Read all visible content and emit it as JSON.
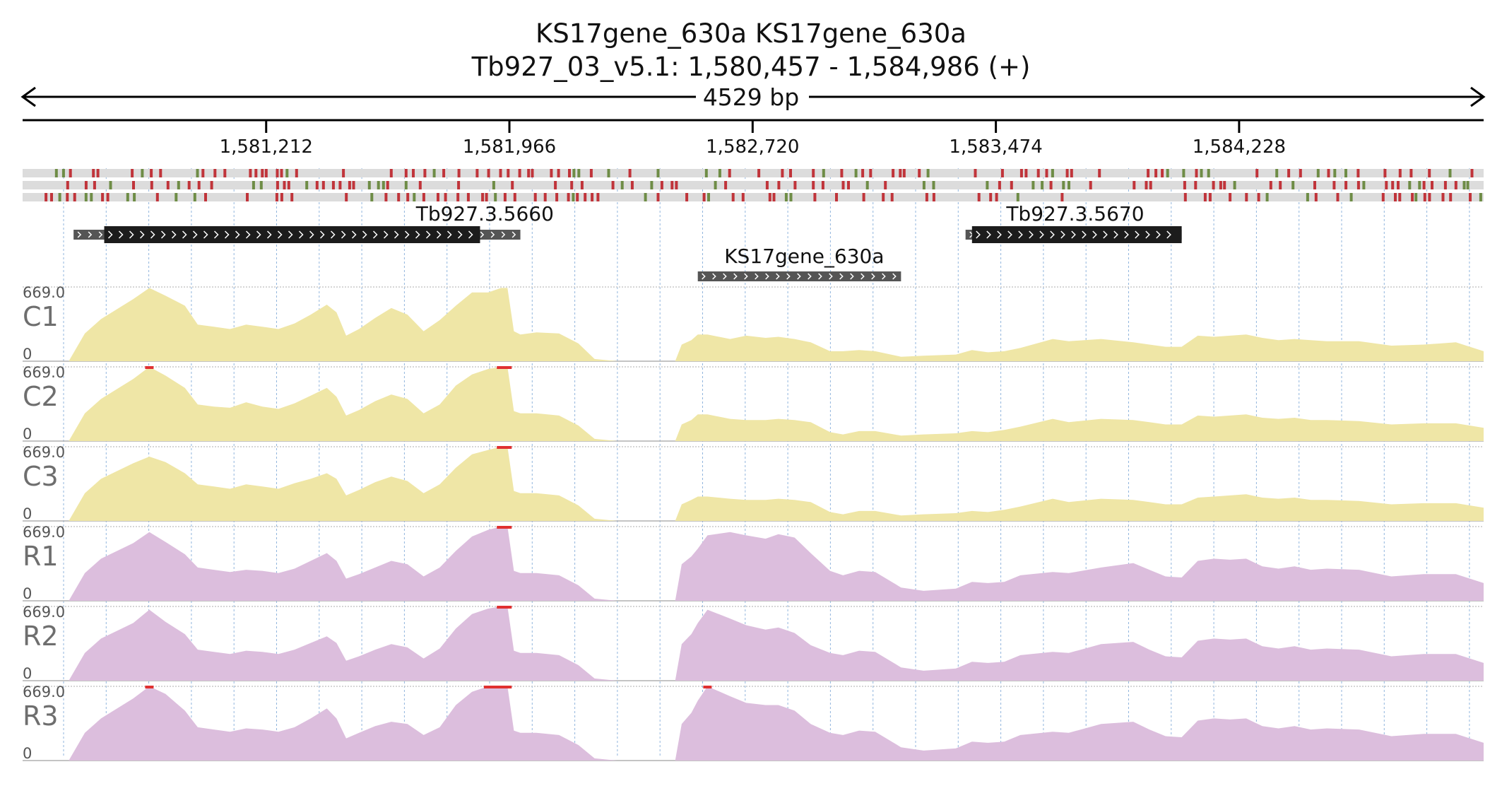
{
  "title": {
    "line1": "KS17gene_630a  KS17gene_630a",
    "line2": "Tb927_03_v5.1: 1,580,457 - 1,584,986 (+)"
  },
  "span_label": "4529 bp",
  "colors": {
    "coverage_C": "#efe6a6",
    "coverage_R": "#dcbedd",
    "variant_red": "#c0343a",
    "variant_green": "#6e8c46",
    "gene": "#1c1c1c",
    "gene_utr": "#555555",
    "clip": "#e03030",
    "grid": "#7ea9d8"
  },
  "chart_data": {
    "type": "area",
    "title": "KS17gene_630a  KS17gene_630a",
    "subtitle": "Tb927_03_v5.1: 1,580,457 - 1,584,986 (+)",
    "xlabel": "",
    "ylabel": "",
    "xlim": [
      1580457,
      1584986
    ],
    "x_ticks": [
      1581212,
      1581966,
      1582720,
      1583474,
      1584228
    ],
    "x_tick_labels": [
      "1,581,212",
      "1,581,966",
      "1,582,720",
      "1,583,474",
      "1,584,228"
    ],
    "ylim": [
      0,
      669
    ],
    "genes": [
      {
        "name": "Tb927.3.5660",
        "start": 1580615,
        "end": 1582000,
        "cds_start": 1580710,
        "cds_end": 1581875,
        "strand": "+"
      },
      {
        "name": "Tb927.3.5670",
        "start": 1583380,
        "end": 1584050,
        "cds_start": 1583400,
        "cds_end": 1584050,
        "strand": "+"
      },
      {
        "name": "KS17gene_630a",
        "start": 1582550,
        "end": 1583180,
        "cds_start": null,
        "cds_end": null,
        "strand": "+"
      }
    ],
    "x": [
      1580457,
      1580600,
      1580650,
      1580700,
      1580800,
      1580850,
      1580900,
      1580960,
      1581000,
      1581050,
      1581100,
      1581150,
      1581200,
      1581250,
      1581300,
      1581350,
      1581400,
      1581430,
      1581460,
      1581500,
      1581550,
      1581600,
      1581650,
      1581700,
      1581750,
      1581800,
      1581850,
      1581900,
      1581940,
      1581960,
      1581980,
      1582000,
      1582050,
      1582120,
      1582180,
      1582230,
      1582300,
      1582400,
      1582480,
      1582500,
      1582530,
      1582550,
      1582580,
      1582650,
      1582700,
      1582760,
      1582800,
      1582850,
      1582900,
      1582960,
      1583000,
      1583050,
      1583100,
      1583180,
      1583250,
      1583350,
      1583400,
      1583450,
      1583500,
      1583550,
      1583650,
      1583700,
      1583800,
      1583900,
      1583950,
      1584000,
      1584050,
      1584100,
      1584150,
      1584200,
      1584250,
      1584300,
      1584350,
      1584400,
      1584450,
      1584500,
      1584600,
      1584700,
      1584800,
      1584900,
      1584986
    ],
    "series": [
      {
        "name": "C1",
        "max_label": "669.0",
        "min_label": "0",
        "values": [
          0,
          0,
          250,
          380,
          560,
          660,
          590,
          500,
          330,
          310,
          290,
          330,
          310,
          290,
          340,
          420,
          510,
          440,
          230,
          290,
          390,
          480,
          420,
          270,
          370,
          500,
          620,
          620,
          660,
          660,
          270,
          240,
          260,
          250,
          160,
          20,
          0,
          0,
          0,
          150,
          190,
          240,
          240,
          200,
          230,
          210,
          220,
          200,
          170,
          90,
          90,
          100,
          90,
          40,
          50,
          60,
          100,
          80,
          90,
          120,
          200,
          180,
          200,
          170,
          150,
          130,
          130,
          230,
          220,
          230,
          240,
          210,
          190,
          200,
          190,
          180,
          180,
          140,
          150,
          170,
          90
        ]
      },
      {
        "name": "C2",
        "max_label": "669.0",
        "min_label": "0",
        "values": [
          0,
          0,
          250,
          380,
          560,
          669,
          590,
          480,
          330,
          310,
          300,
          350,
          310,
          290,
          340,
          410,
          480,
          400,
          230,
          280,
          360,
          420,
          380,
          250,
          330,
          500,
          600,
          650,
          669,
          669,
          270,
          250,
          250,
          230,
          140,
          20,
          0,
          0,
          0,
          150,
          190,
          240,
          240,
          200,
          190,
          190,
          200,
          190,
          170,
          80,
          60,
          90,
          90,
          50,
          60,
          70,
          90,
          80,
          100,
          130,
          200,
          170,
          200,
          190,
          170,
          150,
          150,
          230,
          220,
          230,
          240,
          210,
          200,
          210,
          190,
          190,
          180,
          150,
          160,
          160,
          120
        ]
      },
      {
        "name": "C3",
        "max_label": "669.0",
        "min_label": "0",
        "values": [
          0,
          0,
          250,
          380,
          520,
          580,
          530,
          430,
          330,
          310,
          290,
          330,
          310,
          290,
          340,
          380,
          430,
          380,
          230,
          280,
          350,
          400,
          360,
          250,
          330,
          480,
          600,
          640,
          669,
          669,
          270,
          250,
          250,
          230,
          140,
          20,
          0,
          0,
          0,
          150,
          190,
          220,
          220,
          200,
          190,
          190,
          200,
          190,
          170,
          80,
          60,
          90,
          90,
          50,
          60,
          70,
          90,
          80,
          100,
          130,
          200,
          170,
          200,
          190,
          170,
          150,
          150,
          210,
          220,
          230,
          240,
          210,
          200,
          210,
          190,
          190,
          180,
          150,
          160,
          160,
          120
        ]
      },
      {
        "name": "R1",
        "max_label": "669.0",
        "min_label": "0",
        "values": [
          0,
          0,
          250,
          380,
          520,
          620,
          530,
          420,
          300,
          280,
          260,
          280,
          270,
          250,
          290,
          360,
          430,
          360,
          200,
          240,
          300,
          360,
          330,
          220,
          300,
          450,
          580,
          640,
          669,
          669,
          270,
          250,
          250,
          230,
          140,
          20,
          0,
          0,
          0,
          330,
          400,
          470,
          590,
          620,
          590,
          560,
          600,
          570,
          430,
          270,
          230,
          270,
          260,
          120,
          90,
          110,
          170,
          160,
          170,
          230,
          260,
          250,
          300,
          340,
          280,
          220,
          210,
          360,
          380,
          370,
          380,
          310,
          290,
          310,
          280,
          290,
          280,
          220,
          240,
          240,
          160
        ]
      },
      {
        "name": "R2",
        "max_label": "669.0",
        "min_label": "0",
        "values": [
          0,
          0,
          250,
          380,
          520,
          640,
          530,
          420,
          280,
          260,
          240,
          270,
          260,
          240,
          280,
          340,
          400,
          340,
          180,
          220,
          280,
          330,
          300,
          200,
          290,
          470,
          600,
          650,
          669,
          669,
          270,
          250,
          250,
          230,
          140,
          20,
          0,
          0,
          0,
          330,
          420,
          520,
          640,
          560,
          500,
          460,
          480,
          430,
          320,
          250,
          230,
          270,
          260,
          120,
          90,
          110,
          170,
          160,
          170,
          230,
          260,
          250,
          330,
          350,
          280,
          220,
          210,
          360,
          380,
          370,
          380,
          310,
          290,
          310,
          280,
          290,
          280,
          220,
          240,
          240,
          160
        ]
      },
      {
        "name": "R3",
        "max_label": "669.0",
        "min_label": "0",
        "values": [
          0,
          0,
          250,
          380,
          560,
          669,
          600,
          450,
          300,
          280,
          260,
          290,
          280,
          260,
          300,
          380,
          470,
          380,
          200,
          250,
          310,
          350,
          330,
          230,
          300,
          500,
          620,
          669,
          669,
          669,
          270,
          250,
          250,
          230,
          140,
          20,
          0,
          0,
          0,
          330,
          430,
          540,
          669,
          580,
          520,
          500,
          500,
          450,
          330,
          250,
          230,
          270,
          260,
          120,
          90,
          110,
          170,
          160,
          170,
          230,
          260,
          250,
          330,
          350,
          280,
          220,
          210,
          360,
          380,
          370,
          380,
          310,
          290,
          310,
          280,
          290,
          280,
          220,
          240,
          240,
          160
        ]
      }
    ]
  }
}
